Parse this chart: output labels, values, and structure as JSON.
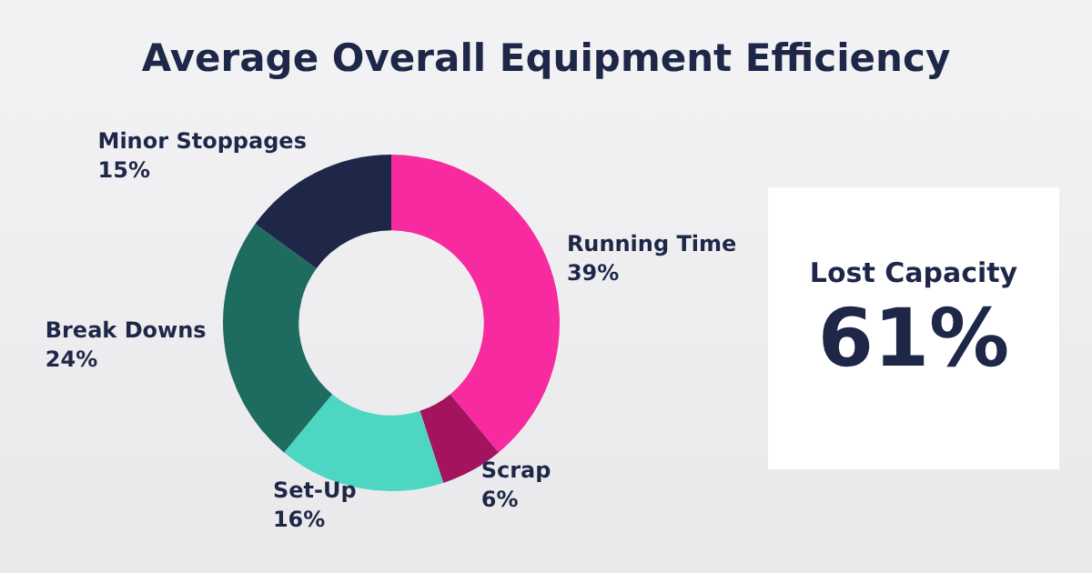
{
  "chart_data": [
    {
      "type": "donut",
      "title": "Average Overall Equipment Efficiency",
      "categories": [
        "Running Time",
        "Scrap",
        "Set-Up",
        "Break Downs",
        "Minor Stoppages"
      ],
      "values": [
        39,
        6,
        16,
        24,
        15
      ],
      "colors": [
        "#f72aa0",
        "#a3135e",
        "#4dd6c2",
        "#1e6b60",
        "#1e2747"
      ],
      "value_labels": [
        "39%",
        "6%",
        "16%",
        "24%",
        "15%"
      ],
      "legend": false
    },
    {
      "type": "other",
      "title": "Lost Capacity",
      "annotations": [
        "61%"
      ]
    }
  ]
}
